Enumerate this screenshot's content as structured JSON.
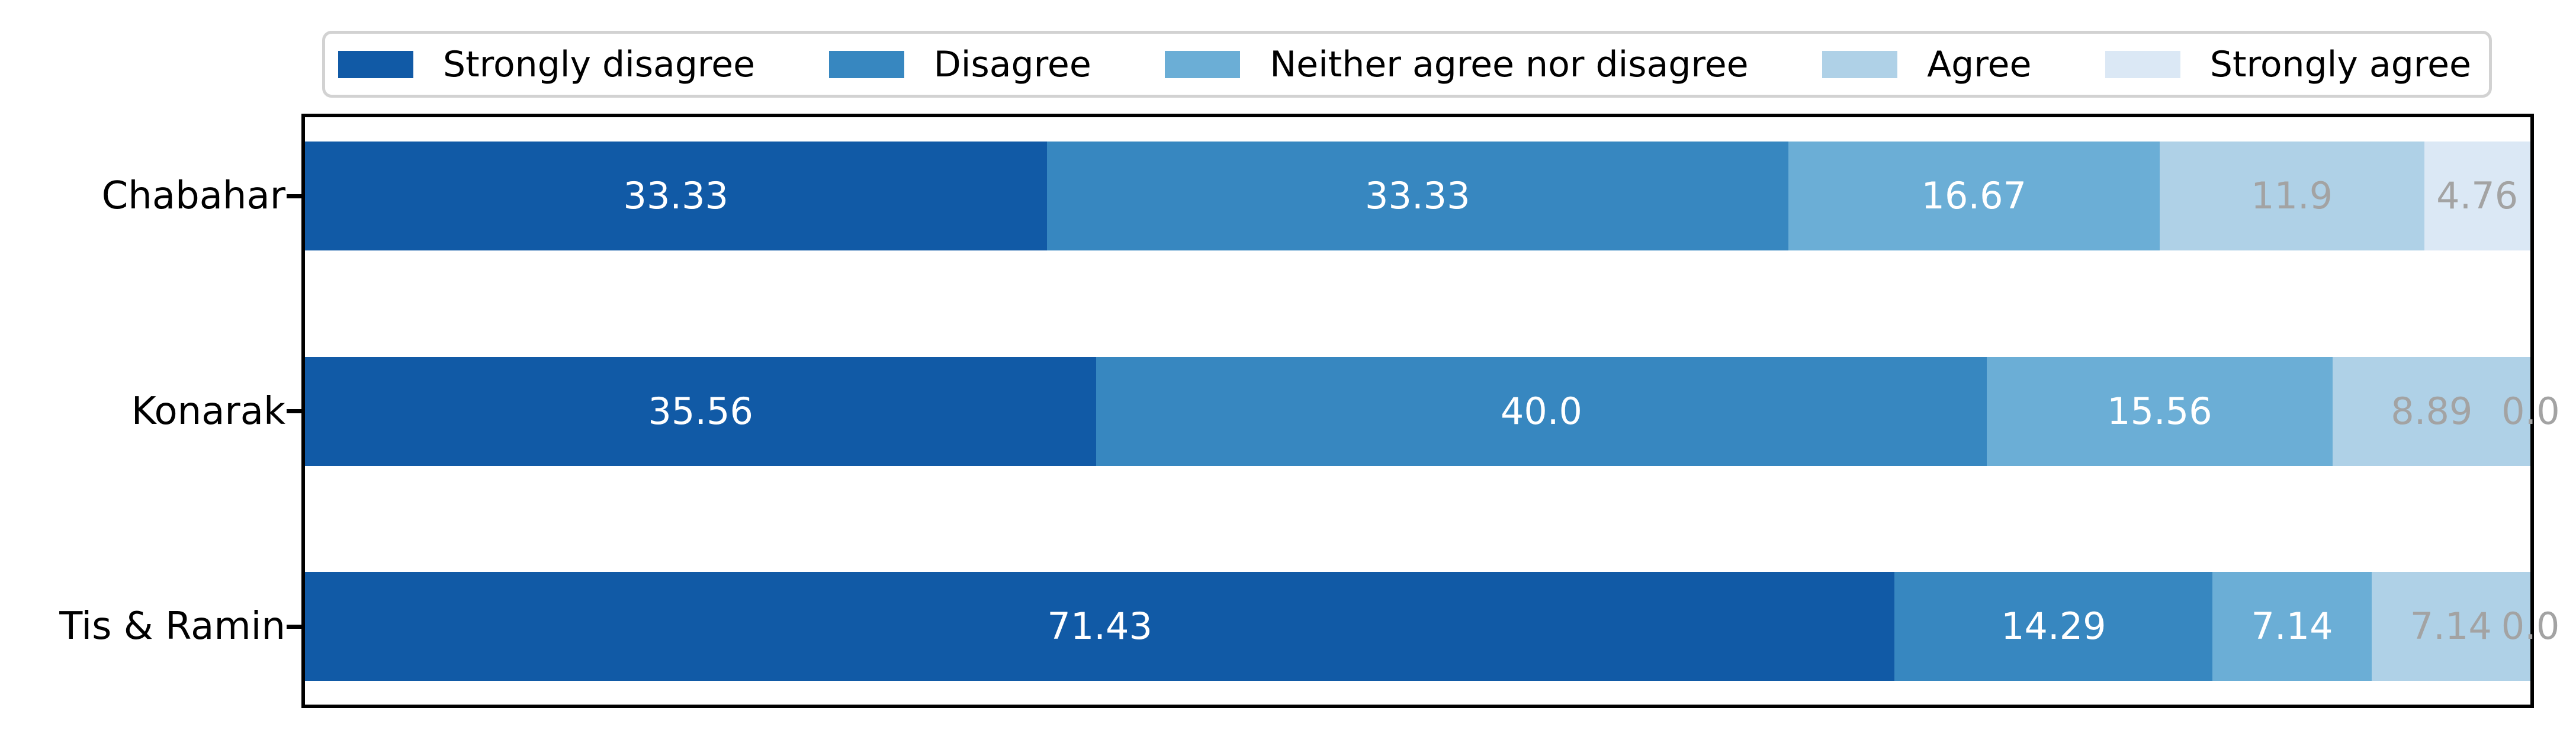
{
  "chart_data": {
    "type": "bar",
    "variant": "horizontal-stacked-100pct",
    "title": "",
    "xlabel": "",
    "ylabel": "",
    "xlim": [
      0,
      100
    ],
    "grid": false,
    "legend_position": "top",
    "categories": [
      "Chabahar",
      "Konarak",
      "Tis & Ramin"
    ],
    "series": [
      {
        "name": "Strongly disagree",
        "color": "#115AA6",
        "label_color": "#ffffff",
        "values": [
          33.33,
          35.56,
          71.43
        ],
        "labels": [
          "33.33",
          "35.56",
          "71.43"
        ]
      },
      {
        "name": "Disagree",
        "color": "#3787C0",
        "label_color": "#ffffff",
        "values": [
          33.33,
          40.0,
          14.29
        ],
        "labels": [
          "33.33",
          "40.0",
          "14.29"
        ]
      },
      {
        "name": "Neither agree nor disagree",
        "color": "#6BAED6",
        "label_color": "#ffffff",
        "values": [
          16.67,
          15.56,
          7.14
        ],
        "labels": [
          "16.67",
          "15.56",
          "7.14"
        ]
      },
      {
        "name": "Agree",
        "color": "#AFD1E7",
        "label_color": "#a3a3a3",
        "values": [
          11.9,
          8.89,
          7.14
        ],
        "labels": [
          "11.9",
          "8.89",
          "7.14"
        ]
      },
      {
        "name": "Strongly agree",
        "color": "#DBE8F5",
        "label_color": "#a3a3a3",
        "values": [
          4.76,
          0.0,
          0.0
        ],
        "labels": [
          "4.76",
          "0.0",
          "0.0"
        ]
      }
    ]
  },
  "colors": {
    "background": "#ffffff",
    "axis_spine": "#000000",
    "legend_border": "#d2d2d2",
    "muted_label": "#a3a3a3"
  }
}
